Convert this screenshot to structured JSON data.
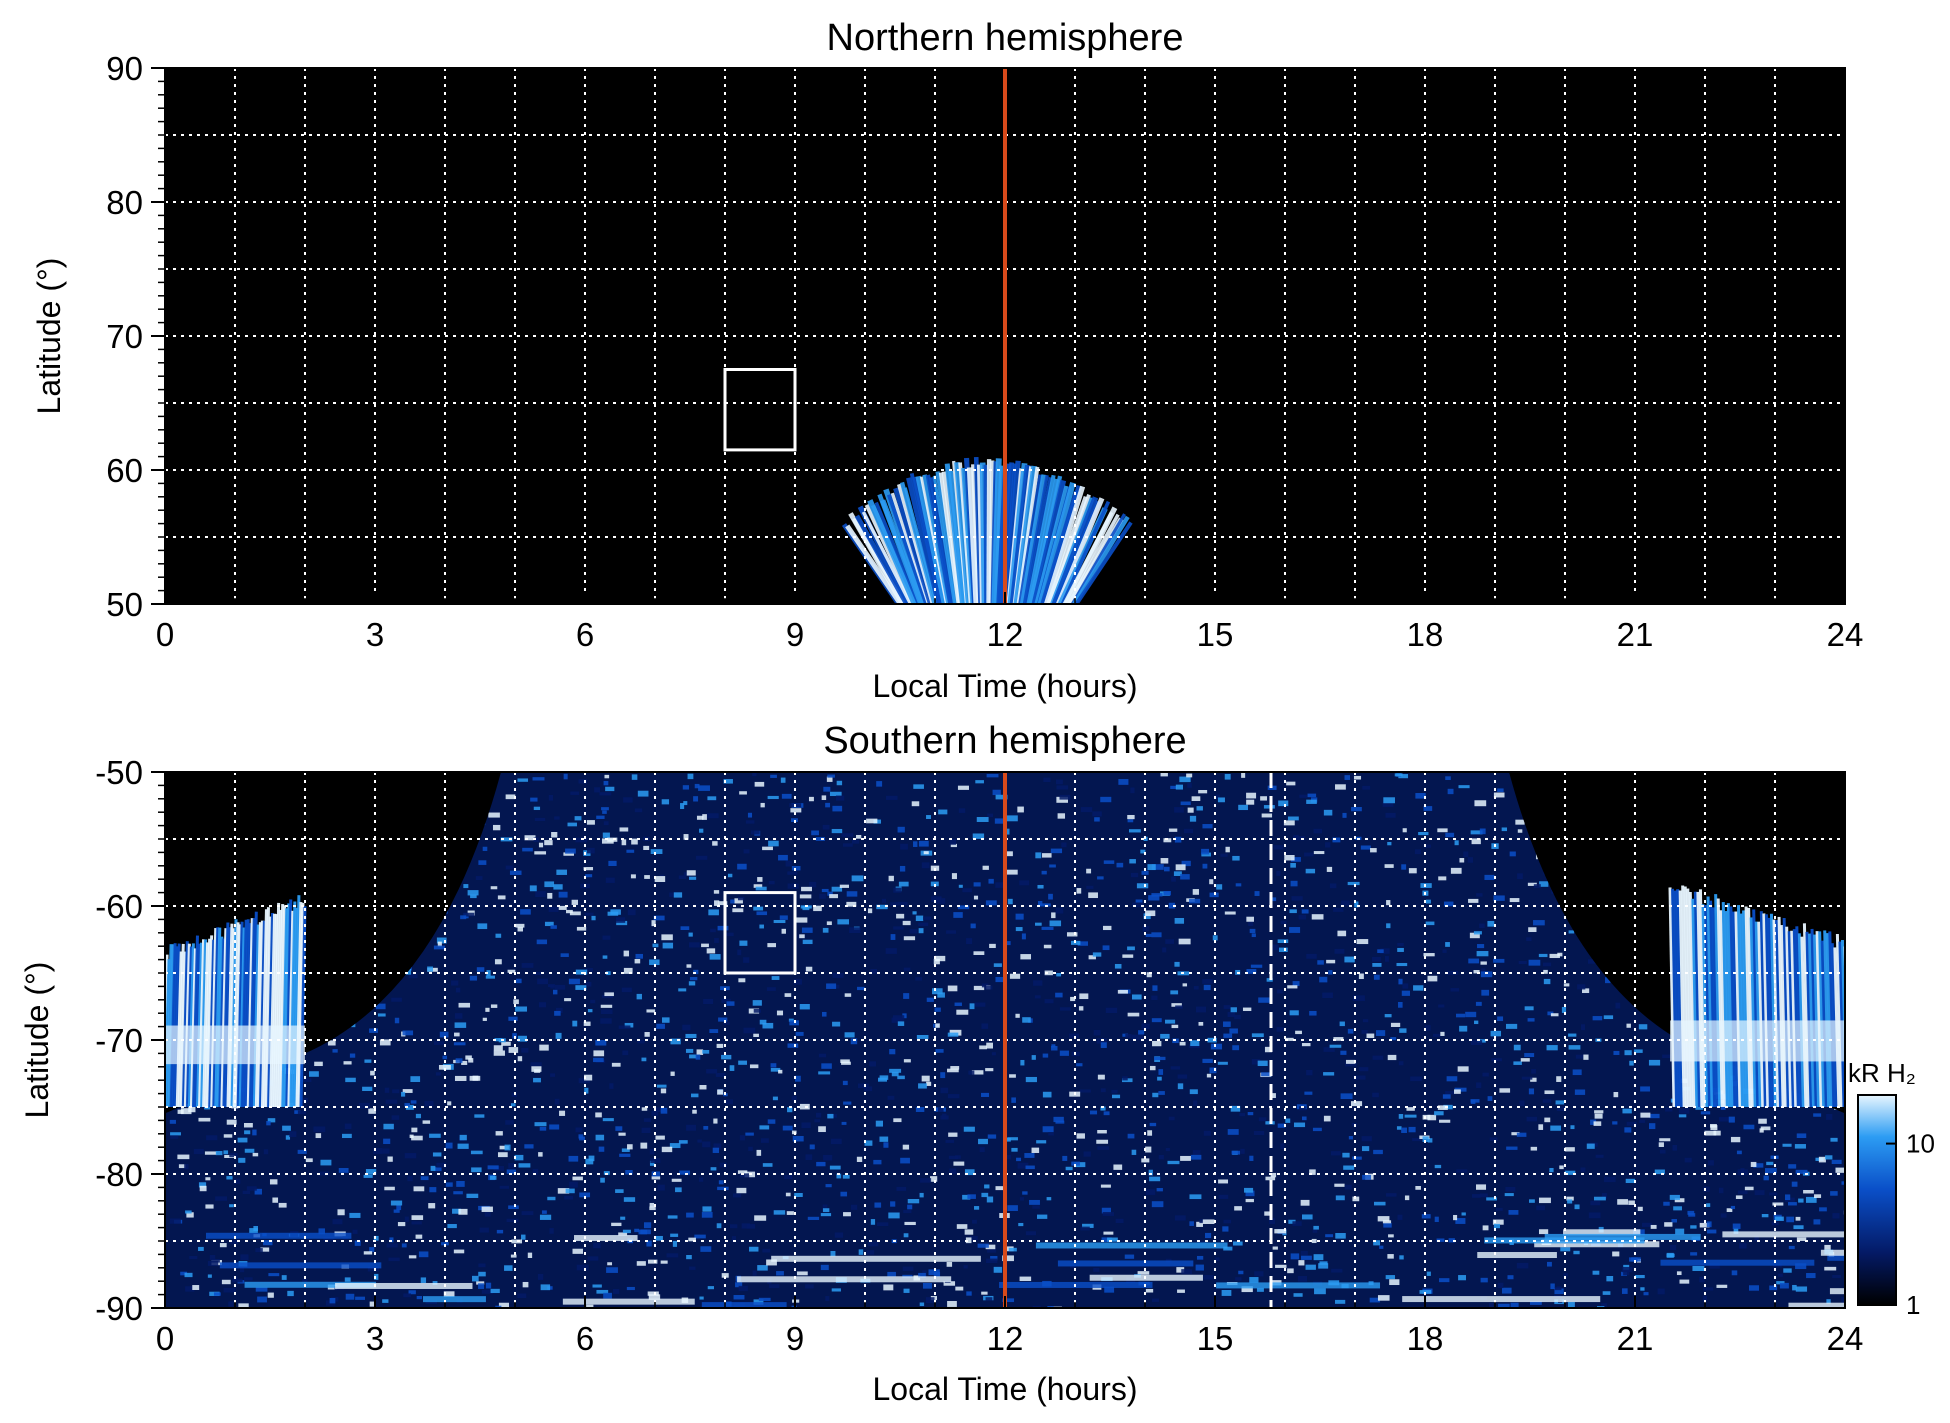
{
  "chart_data": [
    {
      "type": "heatmap",
      "title": "Northern hemisphere",
      "xlabel": "Local Time (hours)",
      "ylabel": "Latitude (°)",
      "xlim": [
        0,
        24
      ],
      "ylim": [
        50,
        90
      ],
      "xticks": [
        "0",
        "3",
        "6",
        "9",
        "12",
        "15",
        "18",
        "21",
        "24"
      ],
      "yticks": [
        "50",
        "60",
        "70",
        "80",
        "90"
      ],
      "grid": true,
      "background": "#000000",
      "marker_line": {
        "x": 12,
        "color": "#d84a1b"
      },
      "box": {
        "x": [
          8,
          9
        ],
        "y": [
          61.5,
          67.5
        ]
      },
      "emission_region": {
        "x": [
          9.7,
          13.8
        ],
        "y": [
          50,
          61
        ]
      }
    },
    {
      "type": "heatmap",
      "title": "Southern hemisphere",
      "xlabel": "Local Time (hours)",
      "ylabel": "Latitude (°)",
      "xlim": [
        0,
        24
      ],
      "ylim": [
        -90,
        -50
      ],
      "xticks": [
        "0",
        "3",
        "6",
        "9",
        "12",
        "15",
        "18",
        "21",
        "24"
      ],
      "yticks": [
        "-90",
        "-80",
        "-70",
        "-60",
        "-50"
      ],
      "grid": true,
      "background": "#000000",
      "marker_line": {
        "x": 12,
        "color": "#d84a1b"
      },
      "dashed_line": {
        "x": 15.8,
        "color": "#ffffff"
      },
      "box": {
        "x": [
          8,
          9
        ],
        "y": [
          -65,
          -59
        ]
      },
      "coverage_edge": {
        "left_hours_at_minus50": 4.8,
        "right_hours_at_minus50": 19.2,
        "hours_at_minus71": [
          2.0,
          22.0
        ]
      },
      "auroral_patches": [
        {
          "x": [
            0,
            2
          ],
          "y": [
            -75,
            -59
          ]
        },
        {
          "x": [
            21.5,
            24
          ],
          "y": [
            -75,
            -58
          ]
        }
      ]
    }
  ],
  "colorbar": {
    "label": "kR H₂",
    "ticks": [
      "1",
      "10"
    ],
    "range": [
      1,
      20
    ],
    "scale": "log",
    "colors": [
      "#000000",
      "#041a66",
      "#0a4fc8",
      "#2c9cf3",
      "#e8f6ff"
    ]
  }
}
